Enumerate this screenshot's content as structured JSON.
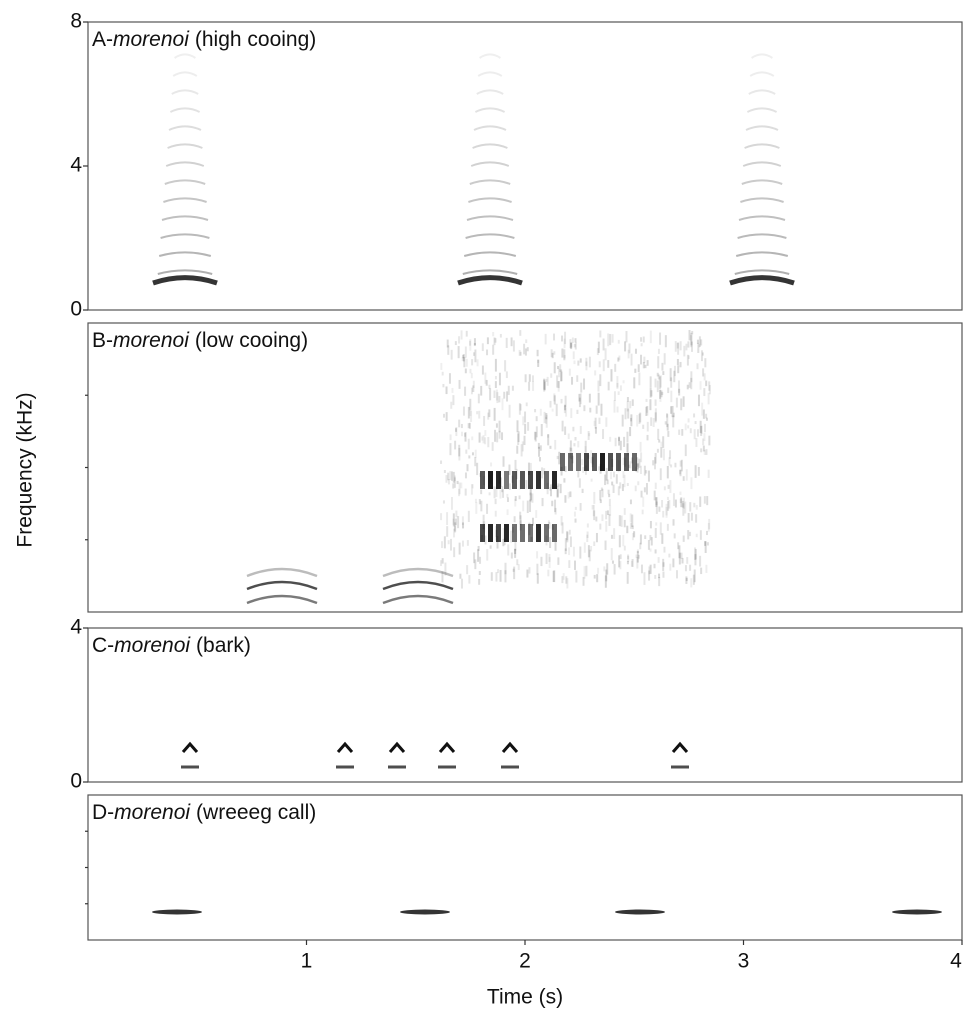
{
  "chart_data": [
    {
      "type": "spectrogram",
      "label": "A-",
      "species": "morenoi",
      "call": "(high cooing)",
      "ylim": [
        0,
        8
      ],
      "yticks": [
        0,
        4,
        8
      ]
    },
    {
      "type": "spectrogram",
      "label": "B-",
      "species": "morenoi",
      "call": "(low cooing)"
    },
    {
      "type": "spectrogram",
      "label": "C-",
      "species": "morenoi",
      "call": "(bark)",
      "ylim": [
        0,
        4
      ],
      "yticks": [
        0,
        4
      ]
    },
    {
      "type": "spectrogram",
      "label": "D-",
      "species": "morenoi",
      "call": "(wreeeg call)",
      "xlabel": "Time (s)",
      "xlim": [
        0,
        4
      ],
      "xticks": [
        1,
        2,
        3,
        4
      ]
    }
  ],
  "ylabel": "Frequency (kHz)"
}
